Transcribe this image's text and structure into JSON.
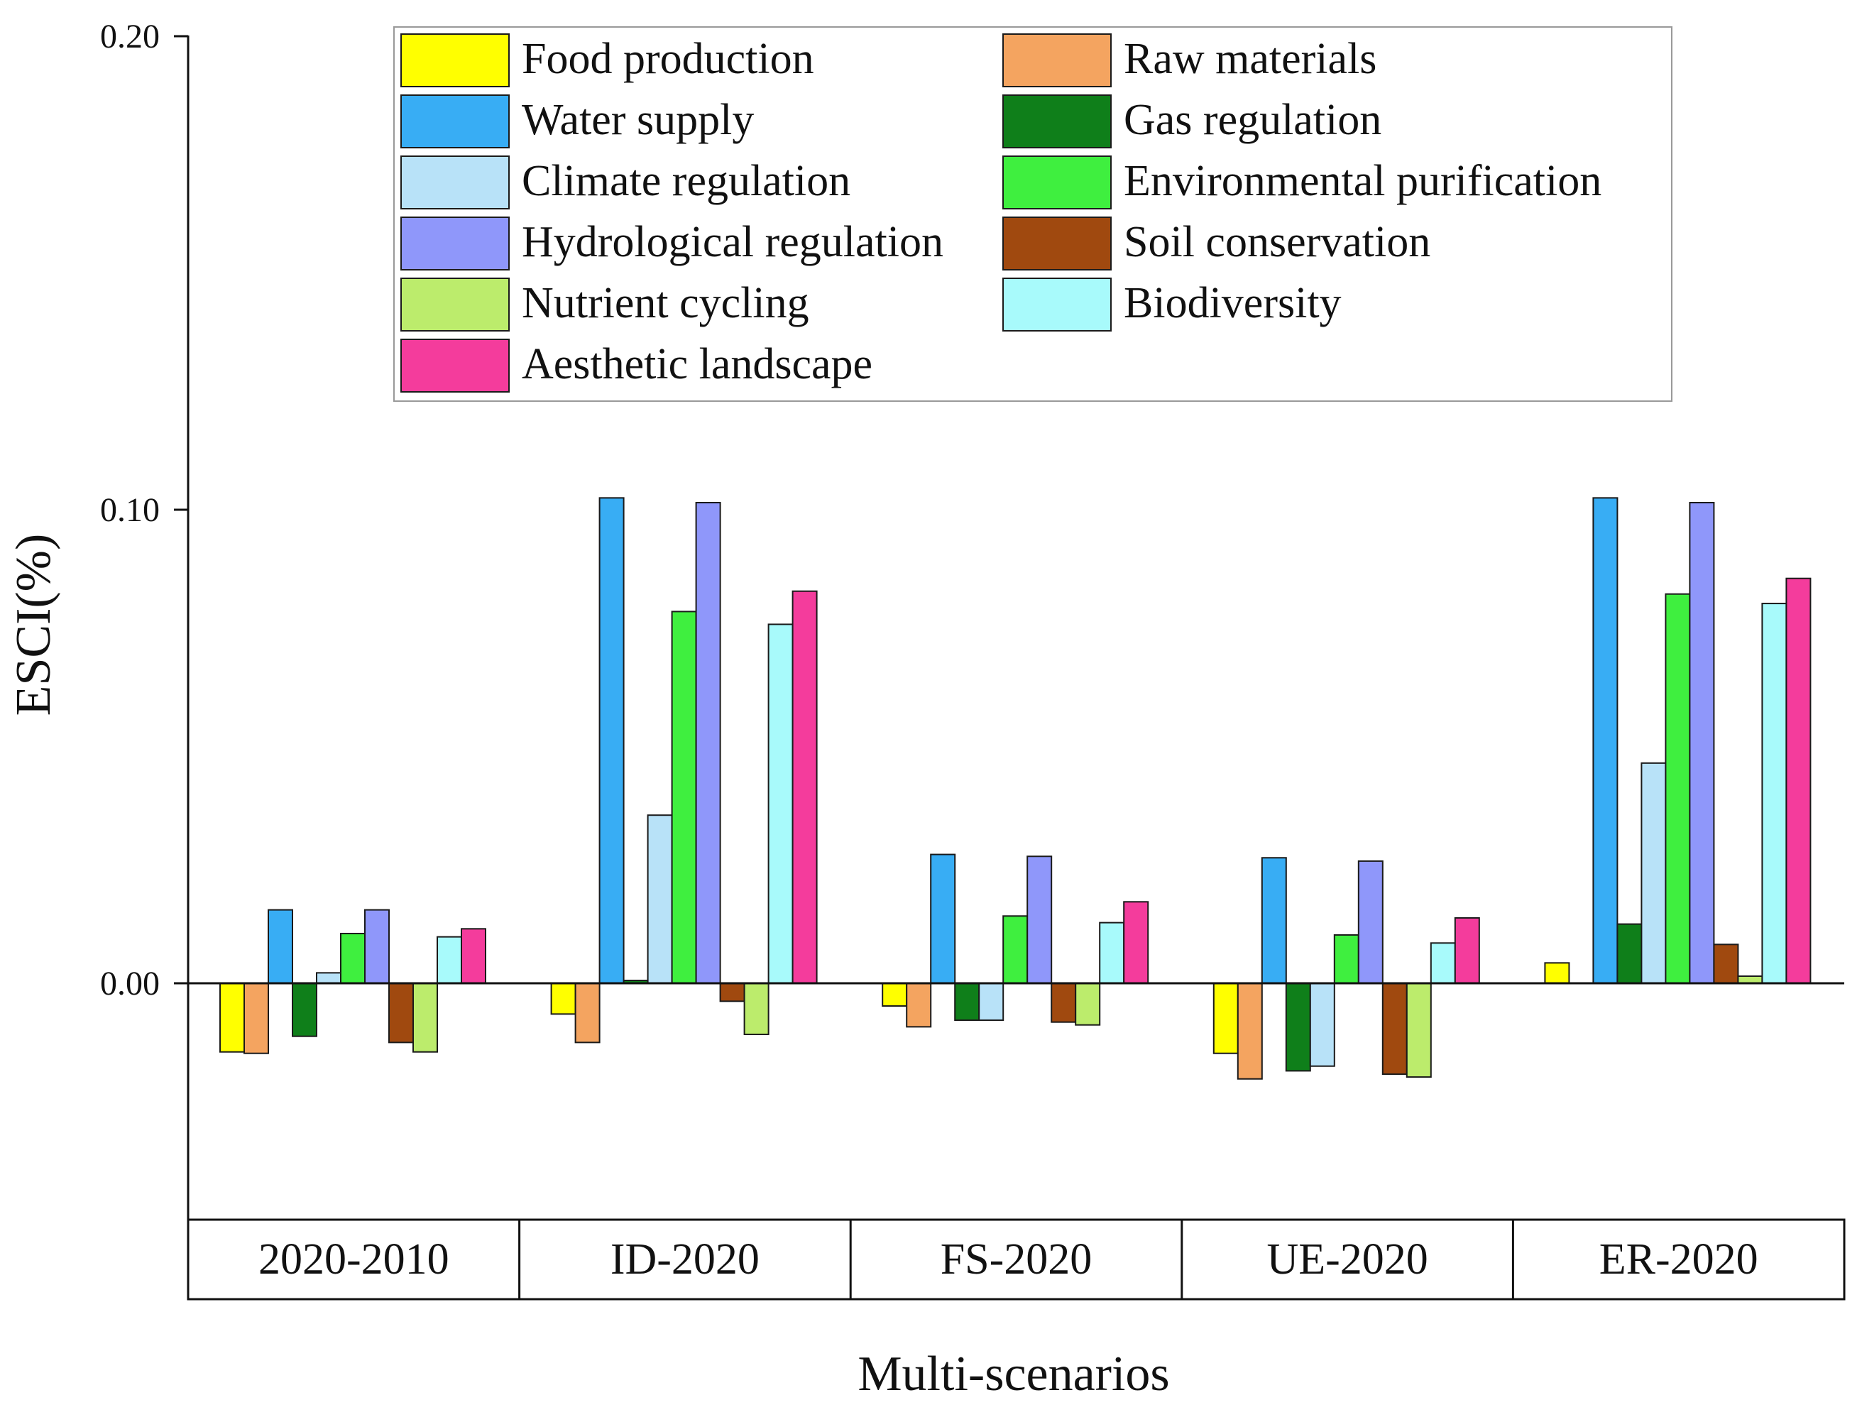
{
  "chart_data": {
    "type": "bar",
    "title": "",
    "xlabel": "Multi-scenarios",
    "ylabel": "ESCI(%)",
    "ylim": [
      -0.05,
      0.2
    ],
    "yticks": [
      0.2,
      0.1,
      0.0
    ],
    "ytick_labels": [
      "0.20",
      "0.10",
      "0.00"
    ],
    "grid": false,
    "legend_position": "top-center",
    "categories": [
      "2020-2010",
      "ID-2020",
      "FS-2020",
      "UE-2020",
      "ER-2020"
    ],
    "series": [
      {
        "name": "Food production",
        "color": "#FFFF00",
        "values": [
          -0.0145,
          -0.0065,
          -0.0048,
          -0.0148,
          0.0043
        ]
      },
      {
        "name": "Raw materials",
        "color": "#F4A460",
        "values": [
          -0.0148,
          -0.0125,
          -0.0092,
          -0.0202,
          0.0
        ]
      },
      {
        "name": "Water supply",
        "color": "#38ADF4",
        "values": [
          0.0155,
          0.1025,
          0.0272,
          0.0265,
          0.1025
        ]
      },
      {
        "name": "Gas regulation",
        "color": "#0F7F1A",
        "values": [
          -0.0112,
          0.0006,
          -0.0078,
          -0.0185,
          0.0125
        ]
      },
      {
        "name": "Climate regulation",
        "color": "#B8E2F8",
        "values": [
          0.0022,
          0.0355,
          -0.0078,
          -0.0175,
          0.0465
        ]
      },
      {
        "name": "Environmental purification",
        "color": "#3FEF3F",
        "values": [
          0.0105,
          0.0785,
          0.0142,
          0.0102,
          0.0822
        ]
      },
      {
        "name": "Hydrological regulation",
        "color": "#8F97FA",
        "values": [
          0.0155,
          0.1015,
          0.0268,
          0.0258,
          0.1015
        ]
      },
      {
        "name": "Soil conservation",
        "color": "#A0490F",
        "values": [
          -0.0125,
          -0.0038,
          -0.0082,
          -0.0192,
          0.0082
        ]
      },
      {
        "name": "Nutrient cycling",
        "color": "#BCEC6C",
        "values": [
          -0.0145,
          -0.0108,
          -0.0088,
          -0.0198,
          0.0015
        ]
      },
      {
        "name": "Biodiversity",
        "color": "#A8FAFB",
        "values": [
          0.0098,
          0.0758,
          0.0128,
          0.0085,
          0.0802
        ]
      },
      {
        "name": "Aesthetic landscape",
        "color": "#F43C9C",
        "values": [
          0.0115,
          0.0828,
          0.0172,
          0.0138,
          0.0855
        ]
      }
    ]
  }
}
